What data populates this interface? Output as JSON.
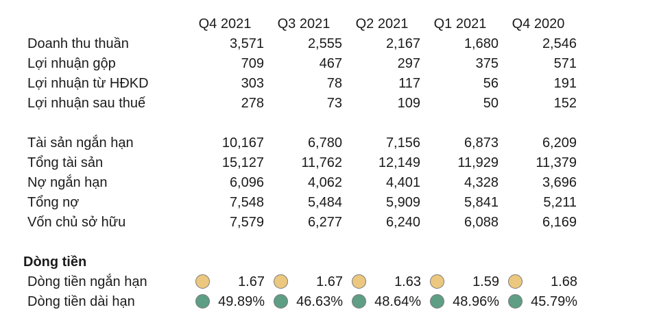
{
  "headers": [
    "Q4 2021",
    "Q3 2021",
    "Q2 2021",
    "Q1 2021",
    "Q4 2020"
  ],
  "income": [
    {
      "label": "Doanh thu thuần",
      "values": [
        "3,571",
        "2,555",
        "2,167",
        "1,680",
        "2,546"
      ]
    },
    {
      "label": "Lợi nhuận gộp",
      "values": [
        "709",
        "467",
        "297",
        "375",
        "571"
      ]
    },
    {
      "label": "Lợi nhuận từ HĐKD",
      "values": [
        "303",
        "78",
        "117",
        "56",
        "191"
      ]
    },
    {
      "label": "Lợi nhuận sau thuế",
      "values": [
        "278",
        "73",
        "109",
        "50",
        "152"
      ]
    }
  ],
  "balance": [
    {
      "label": "Tài sản ngắn hạn",
      "values": [
        "10,167",
        "6,780",
        "7,156",
        "6,873",
        "6,209"
      ]
    },
    {
      "label": "Tổng tài sản",
      "values": [
        "15,127",
        "11,762",
        "12,149",
        "11,929",
        "11,379"
      ]
    },
    {
      "label": "Nợ ngắn hạn",
      "values": [
        "6,096",
        "4,062",
        "4,401",
        "4,328",
        "3,696"
      ]
    },
    {
      "label": "Tổng nợ",
      "values": [
        "7,548",
        "5,484",
        "5,909",
        "5,841",
        "5,211"
      ]
    },
    {
      "label": "Vốn chủ sở hữu",
      "values": [
        "7,579",
        "6,277",
        "6,240",
        "6,088",
        "6,169"
      ]
    }
  ],
  "cashflow": {
    "title": "Dòng tiền",
    "rows": [
      {
        "label": "Dòng tiền ngắn hạn",
        "indicator_color": "#ecc77f",
        "values": [
          "1.67",
          "1.67",
          "1.63",
          "1.59",
          "1.68"
        ]
      },
      {
        "label": "Dòng tiền dài hạn",
        "indicator_color": "#5e9e85",
        "values": [
          "49.89%",
          "46.63%",
          "48.64%",
          "48.96%",
          "45.79%"
        ]
      }
    ]
  }
}
